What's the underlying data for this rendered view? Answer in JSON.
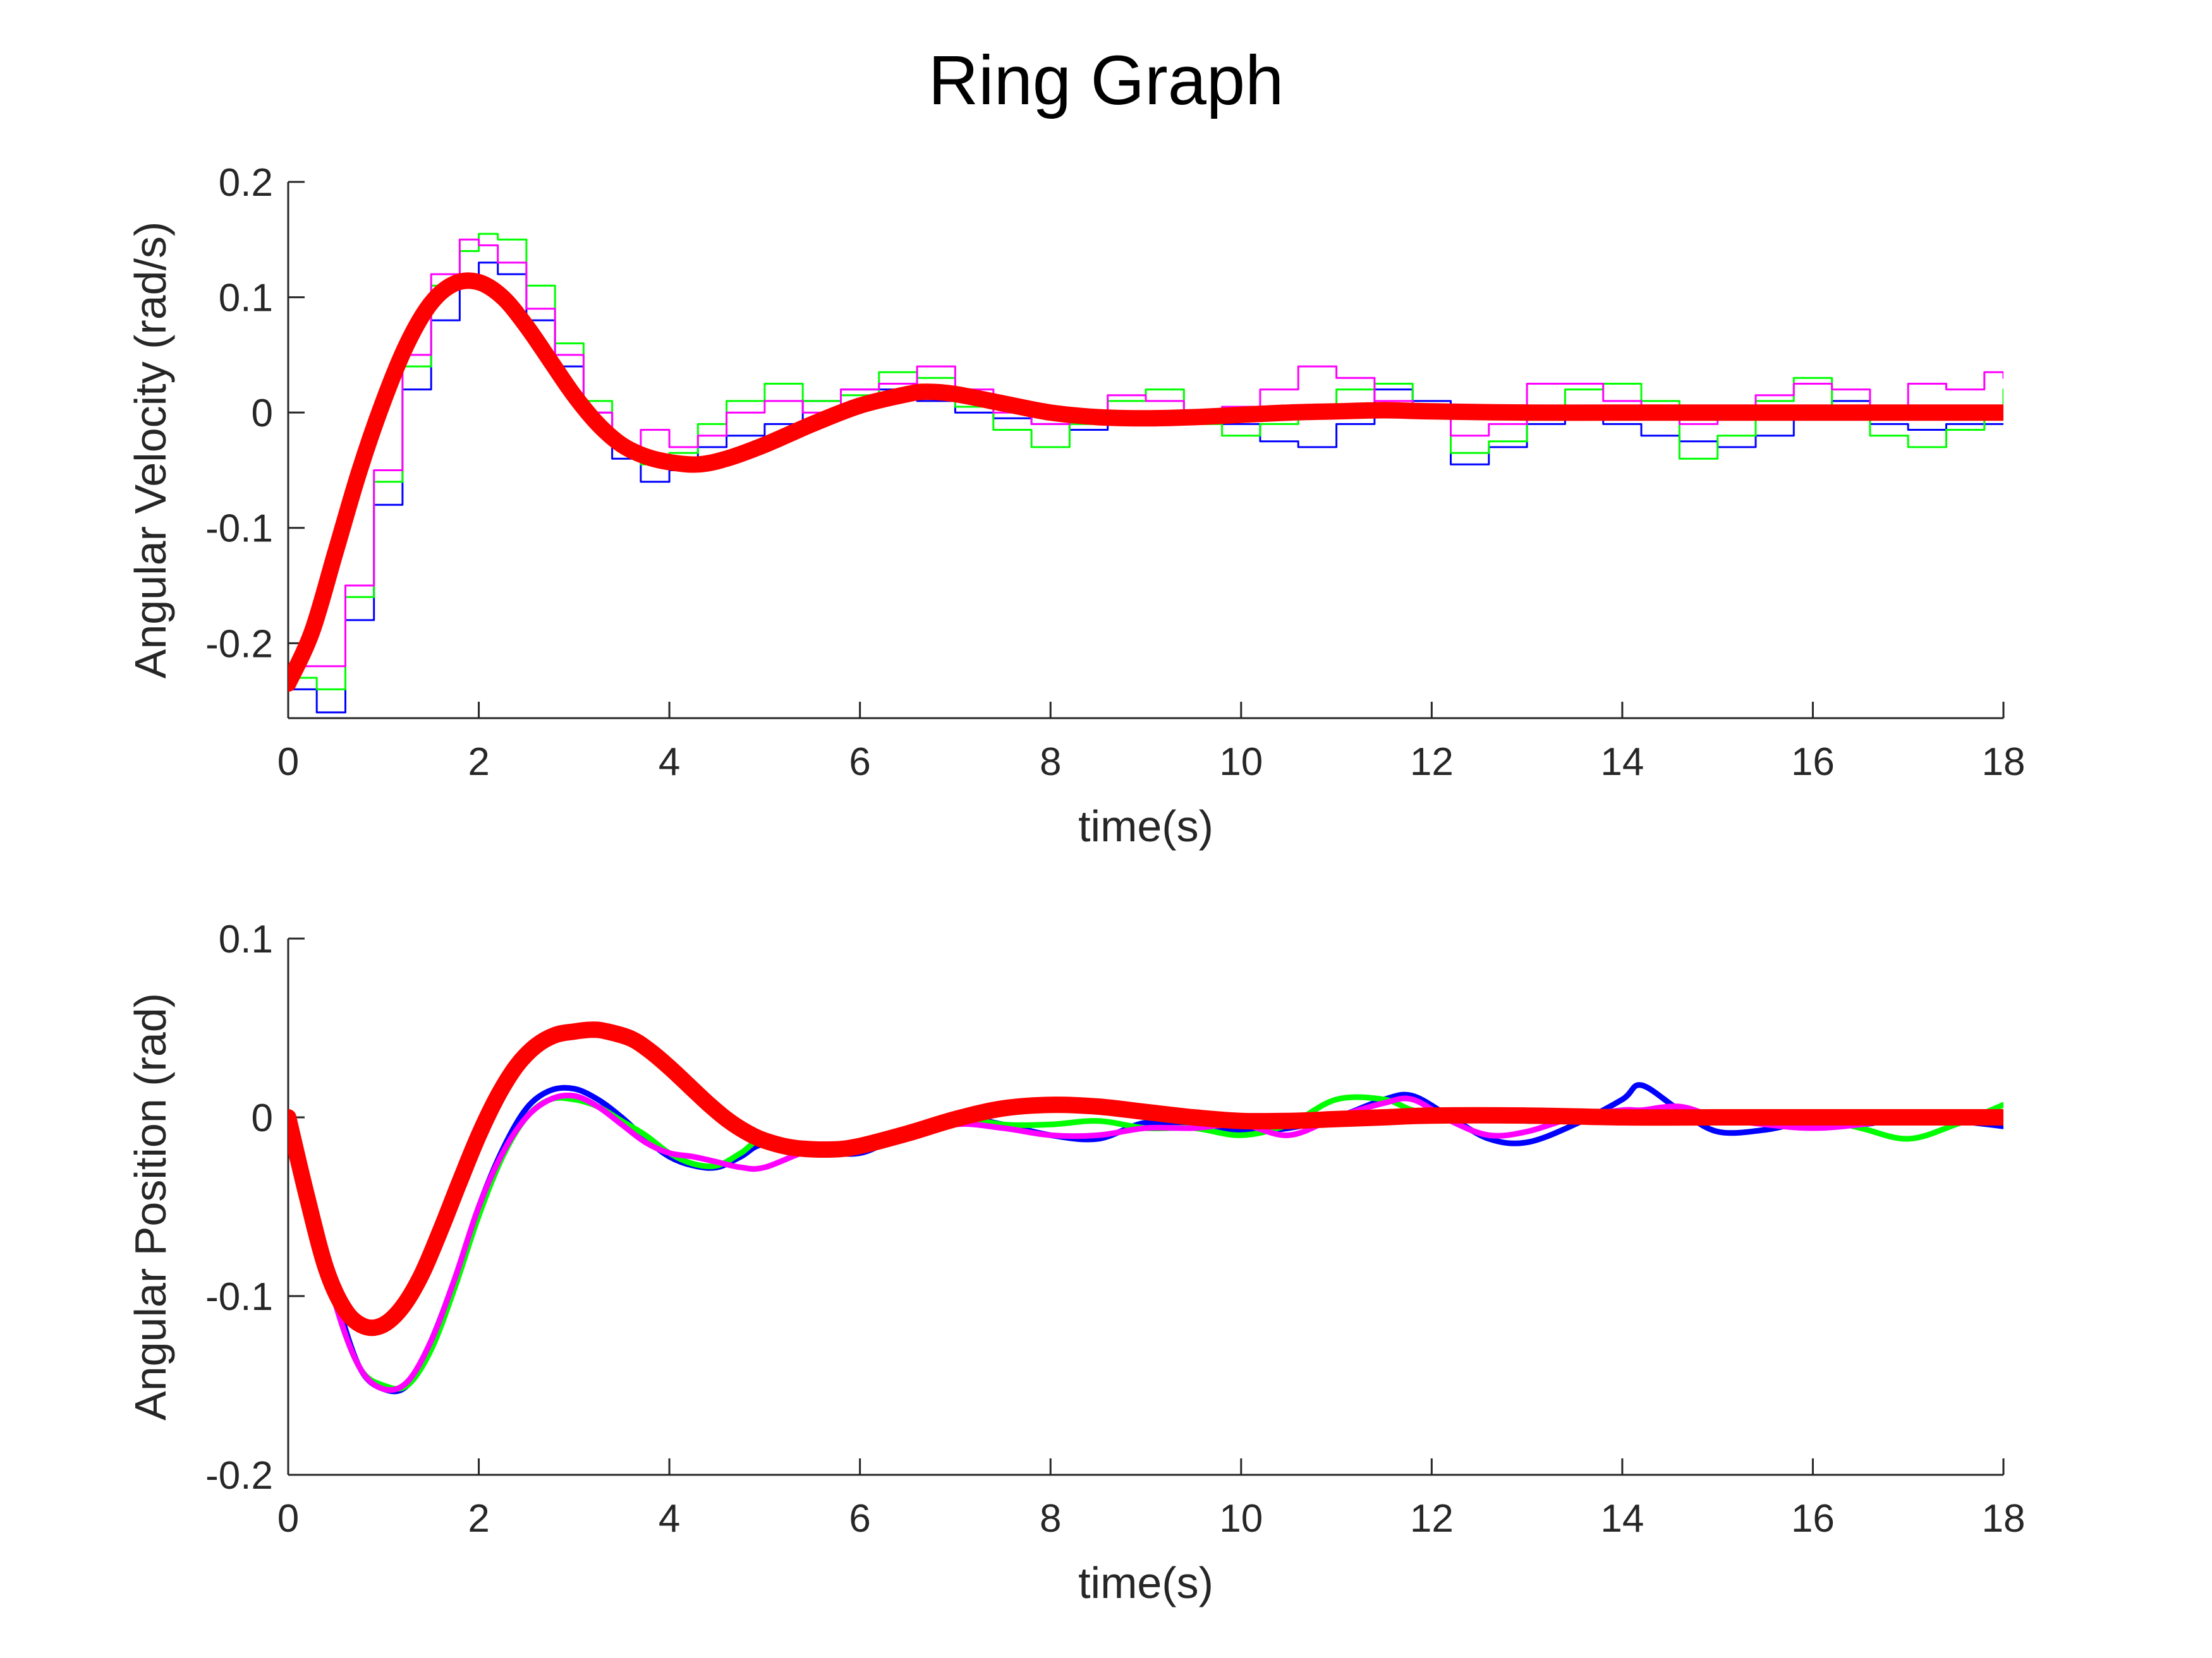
{
  "figure": {
    "title": "Ring Graph"
  },
  "colors": {
    "blue": "#0000ff",
    "green": "#00ff00",
    "magenta": "#ff00ff",
    "red": "#ff0000",
    "axis": "#262626"
  },
  "chart_data": [
    {
      "type": "line",
      "title": "",
      "xlabel": "time(s)",
      "ylabel": "Angular Velocity (rad/s)",
      "xlim": [
        0,
        18
      ],
      "ylim": [
        -0.265,
        0.2
      ],
      "xticks": [
        0,
        2,
        4,
        6,
        8,
        10,
        12,
        14,
        16,
        18
      ],
      "yticks": [
        -0.2,
        -0.1,
        0,
        0.1,
        0.2
      ],
      "ytick_labels": [
        "-0.2",
        "-0.1",
        "0",
        "0.1",
        "0.2"
      ],
      "grid": false,
      "legend": "none",
      "series": [
        {
          "color": "#0000ff",
          "style": "stairs-thin",
          "x": [
            0,
            0.3,
            0.6,
            0.9,
            1.2,
            1.5,
            1.8,
            2.0,
            2.2,
            2.5,
            2.8,
            3.1,
            3.4,
            3.7,
            4.0,
            4.3,
            4.6,
            5.0,
            5.4,
            5.8,
            6.2,
            6.6,
            7.0,
            7.4,
            7.8,
            8.2,
            8.6,
            9.0,
            9.4,
            9.8,
            10.2,
            10.6,
            11.0,
            11.4,
            11.8,
            12.2,
            12.6,
            13.0,
            13.4,
            13.8,
            14.2,
            14.6,
            15.0,
            15.4,
            15.8,
            16.2,
            16.6,
            17.0,
            17.4,
            17.8,
            18.0
          ],
          "y": [
            -0.24,
            -0.26,
            -0.18,
            -0.08,
            0.02,
            0.08,
            0.11,
            0.13,
            0.12,
            0.08,
            0.04,
            0.0,
            -0.04,
            -0.06,
            -0.05,
            -0.03,
            -0.02,
            -0.01,
            0.01,
            0.02,
            0.02,
            0.01,
            0.0,
            -0.005,
            -0.01,
            -0.015,
            -0.01,
            -0.005,
            0.0,
            -0.01,
            -0.025,
            -0.03,
            -0.01,
            0.02,
            0.01,
            -0.045,
            -0.03,
            -0.01,
            0.0,
            -0.01,
            -0.02,
            -0.025,
            -0.03,
            -0.02,
            0.0,
            0.01,
            -0.01,
            -0.015,
            -0.01,
            -0.01,
            -0.01
          ]
        },
        {
          "color": "#00ff00",
          "style": "stairs-thin",
          "x": [
            0,
            0.3,
            0.6,
            0.9,
            1.2,
            1.5,
            1.8,
            2.0,
            2.2,
            2.5,
            2.8,
            3.1,
            3.4,
            3.7,
            4.0,
            4.3,
            4.6,
            5.0,
            5.4,
            5.8,
            6.2,
            6.6,
            7.0,
            7.4,
            7.8,
            8.2,
            8.6,
            9.0,
            9.4,
            9.8,
            10.2,
            10.6,
            11.0,
            11.4,
            11.8,
            12.2,
            12.6,
            13.0,
            13.4,
            13.8,
            14.2,
            14.6,
            15.0,
            15.4,
            15.8,
            16.2,
            16.6,
            17.0,
            17.4,
            17.8,
            18.0
          ],
          "y": [
            -0.23,
            -0.24,
            -0.16,
            -0.06,
            0.04,
            0.11,
            0.14,
            0.155,
            0.15,
            0.11,
            0.06,
            0.01,
            -0.03,
            -0.045,
            -0.035,
            -0.01,
            0.01,
            0.025,
            0.01,
            0.015,
            0.035,
            0.03,
            0.005,
            -0.015,
            -0.03,
            -0.01,
            0.01,
            0.02,
            -0.01,
            -0.02,
            -0.01,
            0.0,
            0.02,
            0.025,
            0.0,
            -0.035,
            -0.025,
            0.005,
            0.02,
            0.025,
            0.01,
            -0.04,
            -0.02,
            0.01,
            0.03,
            0.0,
            -0.02,
            -0.03,
            -0.015,
            0.0,
            0.02
          ]
        },
        {
          "color": "#ff00ff",
          "style": "stairs-thin",
          "x": [
            0,
            0.3,
            0.6,
            0.9,
            1.2,
            1.5,
            1.8,
            2.0,
            2.2,
            2.5,
            2.8,
            3.1,
            3.4,
            3.7,
            4.0,
            4.3,
            4.6,
            5.0,
            5.4,
            5.8,
            6.2,
            6.6,
            7.0,
            7.4,
            7.8,
            8.2,
            8.6,
            9.0,
            9.4,
            9.8,
            10.2,
            10.6,
            11.0,
            11.4,
            11.8,
            12.2,
            12.6,
            13.0,
            13.4,
            13.8,
            14.2,
            14.6,
            15.0,
            15.4,
            15.8,
            16.2,
            16.6,
            17.0,
            17.4,
            17.8,
            18.0
          ],
          "y": [
            -0.22,
            -0.22,
            -0.15,
            -0.05,
            0.05,
            0.12,
            0.15,
            0.145,
            0.13,
            0.09,
            0.05,
            0.0,
            -0.03,
            -0.015,
            -0.03,
            -0.02,
            0.0,
            0.01,
            0.0,
            0.02,
            0.025,
            0.04,
            0.02,
            0.0,
            -0.01,
            -0.005,
            0.015,
            0.01,
            -0.005,
            0.005,
            0.02,
            0.04,
            0.03,
            0.01,
            0.0,
            -0.02,
            -0.01,
            0.025,
            0.025,
            0.01,
            0.0,
            -0.01,
            0.0,
            0.015,
            0.025,
            0.02,
            0.0,
            0.025,
            0.02,
            0.035,
            0.03
          ]
        },
        {
          "color": "#ff0000",
          "style": "thick",
          "x": [
            0,
            0.25,
            0.5,
            0.75,
            1.0,
            1.25,
            1.5,
            1.75,
            2.0,
            2.25,
            2.5,
            2.75,
            3.0,
            3.25,
            3.5,
            3.75,
            4.0,
            4.3,
            4.6,
            5.0,
            5.5,
            6.0,
            6.5,
            6.7,
            7.0,
            7.5,
            8.0,
            8.5,
            9.0,
            9.5,
            10.0,
            10.5,
            11.0,
            11.5,
            12.0,
            13.0,
            14.0,
            15.0,
            16.0,
            17.0,
            18.0
          ],
          "y": [
            -0.235,
            -0.19,
            -0.12,
            -0.05,
            0.01,
            0.06,
            0.095,
            0.112,
            0.113,
            0.1,
            0.075,
            0.045,
            0.015,
            -0.01,
            -0.028,
            -0.038,
            -0.043,
            -0.045,
            -0.04,
            -0.028,
            -0.01,
            0.006,
            0.016,
            0.018,
            0.016,
            0.008,
            0.0,
            -0.004,
            -0.005,
            -0.004,
            -0.002,
            0.0,
            0.001,
            0.002,
            0.001,
            0.0,
            0.0,
            0.0,
            0.0,
            0.0,
            0.0
          ]
        }
      ]
    },
    {
      "type": "line",
      "title": "",
      "xlabel": "time(s)",
      "ylabel": "Angular Position (rad)",
      "xlim": [
        0,
        18
      ],
      "ylim": [
        -0.2,
        0.1
      ],
      "xticks": [
        0,
        2,
        4,
        6,
        8,
        10,
        12,
        14,
        16,
        18
      ],
      "yticks": [
        -0.2,
        -0.1,
        0,
        0.1
      ],
      "ytick_labels": [
        "-0.2",
        "-0.1",
        "0",
        "0.1"
      ],
      "grid": false,
      "legend": "none",
      "series": [
        {
          "color": "#0000ff",
          "style": "medium",
          "x": [
            0,
            0.25,
            0.5,
            0.75,
            1.0,
            1.25,
            1.5,
            1.75,
            2.0,
            2.25,
            2.5,
            2.75,
            3.0,
            3.25,
            3.5,
            3.75,
            4.0,
            4.25,
            4.5,
            4.75,
            5.0,
            5.5,
            6.0,
            6.5,
            7.0,
            7.5,
            8.0,
            8.5,
            9.0,
            9.5,
            10.0,
            10.5,
            11.0,
            11.5,
            11.8,
            12.2,
            12.6,
            13.0,
            13.5,
            14.0,
            14.2,
            14.6,
            15.0,
            15.5,
            16.0,
            16.5,
            17.0,
            17.5,
            18.0
          ],
          "y": [
            0.0,
            -0.045,
            -0.1,
            -0.14,
            -0.152,
            -0.15,
            -0.125,
            -0.09,
            -0.05,
            -0.018,
            0.005,
            0.015,
            0.016,
            0.01,
            0.0,
            -0.012,
            -0.022,
            -0.027,
            -0.028,
            -0.022,
            -0.015,
            -0.018,
            -0.02,
            -0.008,
            0.0,
            -0.004,
            -0.01,
            -0.012,
            -0.003,
            -0.005,
            -0.008,
            -0.006,
            0.0,
            0.01,
            0.012,
            0.0,
            -0.012,
            -0.014,
            -0.004,
            0.01,
            0.018,
            0.004,
            -0.008,
            -0.007,
            -0.002,
            -0.004,
            0.0,
            -0.002,
            -0.005
          ]
        },
        {
          "color": "#00ff00",
          "style": "medium",
          "x": [
            0,
            0.25,
            0.5,
            0.75,
            1.0,
            1.25,
            1.5,
            1.75,
            2.0,
            2.25,
            2.5,
            2.75,
            3.0,
            3.25,
            3.5,
            3.75,
            4.0,
            4.25,
            4.5,
            4.75,
            5.0,
            5.5,
            6.0,
            6.5,
            7.0,
            7.5,
            8.0,
            8.5,
            9.0,
            9.5,
            10.0,
            10.5,
            11.0,
            11.5,
            11.8,
            12.2,
            12.6,
            13.0,
            13.5,
            14.0,
            14.2,
            14.6,
            15.0,
            15.5,
            16.0,
            16.5,
            17.0,
            17.5,
            18.0
          ],
          "y": [
            0.0,
            -0.05,
            -0.105,
            -0.14,
            -0.15,
            -0.15,
            -0.13,
            -0.095,
            -0.055,
            -0.022,
            0.0,
            0.01,
            0.01,
            0.006,
            -0.002,
            -0.01,
            -0.02,
            -0.026,
            -0.027,
            -0.02,
            -0.012,
            -0.016,
            -0.016,
            -0.006,
            0.0,
            -0.004,
            -0.004,
            -0.002,
            -0.006,
            -0.006,
            -0.01,
            -0.004,
            0.01,
            0.01,
            0.004,
            0.0,
            0.002,
            -0.002,
            0.0,
            0.004,
            0.002,
            -0.002,
            0.0,
            -0.002,
            0.0,
            -0.006,
            -0.012,
            -0.004,
            0.007
          ]
        },
        {
          "color": "#ff00ff",
          "style": "medium",
          "x": [
            0,
            0.25,
            0.5,
            0.75,
            1.0,
            1.25,
            1.5,
            1.75,
            2.0,
            2.25,
            2.5,
            2.75,
            3.0,
            3.25,
            3.5,
            3.75,
            4.0,
            4.25,
            4.5,
            4.75,
            5.0,
            5.5,
            6.0,
            6.5,
            7.0,
            7.5,
            8.0,
            8.5,
            9.0,
            9.5,
            10.0,
            10.5,
            11.0,
            11.5,
            11.8,
            12.2,
            12.6,
            13.0,
            13.5,
            14.0,
            14.2,
            14.6,
            15.0,
            15.5,
            16.0,
            16.5,
            17.0,
            17.5,
            18.0
          ],
          "y": [
            0.0,
            -0.05,
            -0.105,
            -0.14,
            -0.152,
            -0.148,
            -0.125,
            -0.09,
            -0.05,
            -0.02,
            0.0,
            0.01,
            0.012,
            0.006,
            -0.004,
            -0.014,
            -0.02,
            -0.022,
            -0.025,
            -0.028,
            -0.028,
            -0.018,
            -0.015,
            -0.012,
            -0.004,
            -0.006,
            -0.01,
            -0.01,
            -0.006,
            -0.006,
            -0.004,
            -0.01,
            0.0,
            0.008,
            0.01,
            -0.002,
            -0.01,
            -0.008,
            0.0,
            0.004,
            0.004,
            0.006,
            0.0,
            -0.004,
            -0.006,
            -0.004,
            0.0,
            0.0,
            0.001
          ]
        },
        {
          "color": "#ff0000",
          "style": "thick",
          "x": [
            0,
            0.2,
            0.4,
            0.6,
            0.8,
            1.0,
            1.2,
            1.4,
            1.6,
            1.8,
            2.0,
            2.2,
            2.4,
            2.6,
            2.8,
            3.0,
            3.2,
            3.35,
            3.6,
            3.8,
            4.0,
            4.2,
            4.4,
            4.6,
            4.8,
            5.0,
            5.3,
            5.7,
            6.0,
            6.5,
            7.0,
            7.5,
            8.0,
            8.5,
            9.0,
            9.5,
            10.0,
            10.5,
            11.0,
            11.5,
            12.0,
            13.0,
            14.0,
            15.0,
            16.0,
            17.0,
            18.0
          ],
          "y": [
            0.0,
            -0.045,
            -0.085,
            -0.108,
            -0.117,
            -0.116,
            -0.106,
            -0.088,
            -0.063,
            -0.036,
            -0.01,
            0.012,
            0.029,
            0.04,
            0.046,
            0.048,
            0.049,
            0.048,
            0.044,
            0.037,
            0.028,
            0.018,
            0.008,
            -0.001,
            -0.008,
            -0.013,
            -0.017,
            -0.018,
            -0.016,
            -0.009,
            -0.001,
            0.005,
            0.007,
            0.006,
            0.003,
            0.0,
            -0.002,
            -0.002,
            -0.001,
            0.0,
            0.001,
            0.001,
            0.0,
            0.0,
            0.0,
            0.0,
            0.0
          ]
        }
      ]
    }
  ]
}
